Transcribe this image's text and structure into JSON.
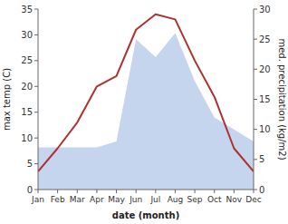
{
  "chart_data": {
    "type": "line",
    "categories": [
      "Jan",
      "Feb",
      "Mar",
      "Apr",
      "May",
      "Jun",
      "Jul",
      "Aug",
      "Sep",
      "Oct",
      "Nov",
      "Dec"
    ],
    "xlabel": "date (month)",
    "ylabel": "max temp (C)",
    "y2label": "med. precipitation (kg/m2)",
    "series": [
      {
        "type": "area",
        "color": "#c5d5ee",
        "axis": "y2",
        "values": [
          7.0,
          7.0,
          7.0,
          7.0,
          8.0,
          25.0,
          22.0,
          26.0,
          18.0,
          12.0,
          10.0,
          8.0
        ]
      },
      {
        "type": "line",
        "color": "#b03030",
        "values": [
          3.5,
          8.0,
          13.0,
          20.0,
          22.0,
          31.0,
          34.0,
          33.0,
          25.0,
          18.0,
          8.0,
          3.5
        ]
      }
    ],
    "ylim": [
      0,
      35
    ],
    "yticks": [
      0,
      5,
      10,
      15,
      20,
      25,
      30,
      35
    ],
    "y2lim": [
      0,
      30
    ],
    "y2ticks": [
      0,
      5,
      10,
      15,
      20,
      25,
      30
    ],
    "grid": false
  }
}
